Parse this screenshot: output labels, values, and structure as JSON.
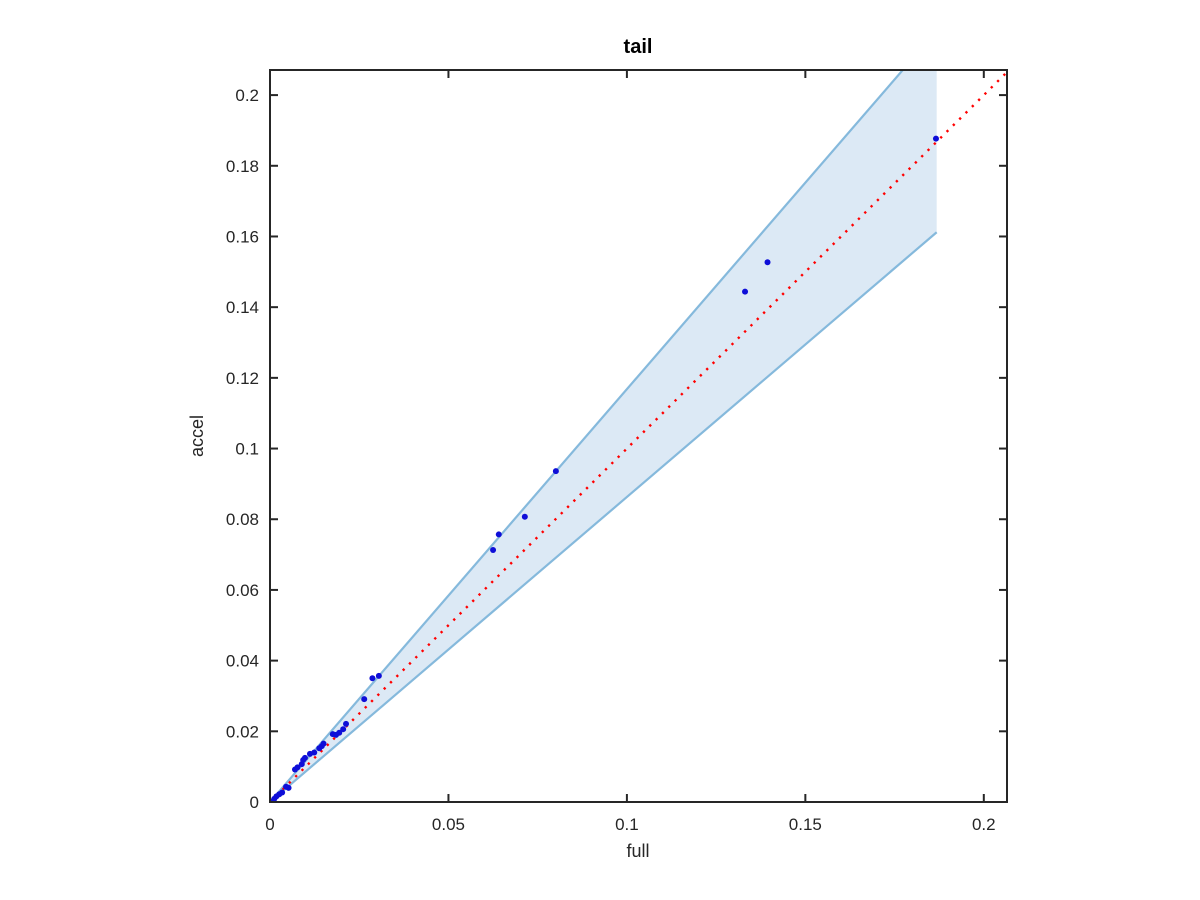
{
  "figure": {
    "background_color": "#ffffff",
    "axes_color": "#262626"
  },
  "chart_data": {
    "type": "scatter",
    "title": "tail",
    "xlabel": "full",
    "ylabel": "accel",
    "xlim": [
      0,
      0.2065
    ],
    "ylim": [
      0,
      0.2071
    ],
    "grid": false,
    "box": true,
    "tick_direction": "in",
    "xticks": [
      0,
      0.05,
      0.1,
      0.15,
      0.2
    ],
    "xtick_labels": [
      "0",
      "0.05",
      "0.1",
      "0.15",
      "0.2"
    ],
    "yticks": [
      0,
      0.02,
      0.04,
      0.06,
      0.08,
      0.1,
      0.12,
      0.14,
      0.16,
      0.18,
      0.2
    ],
    "ytick_labels": [
      "0",
      "0.02",
      "0.04",
      "0.06",
      "0.08",
      "0.1",
      "0.12",
      "0.14",
      "0.16",
      "0.18",
      "0.2"
    ],
    "scatter": {
      "name": "data-points",
      "color": "#0e0ed8",
      "marker": "dot",
      "points": [
        [
          0.0004,
          0.0001
        ],
        [
          0.0012,
          0.0009
        ],
        [
          0.0018,
          0.0016
        ],
        [
          0.0026,
          0.0022
        ],
        [
          0.0034,
          0.0027
        ],
        [
          0.0045,
          0.0043
        ],
        [
          0.0052,
          0.004
        ],
        [
          0.007,
          0.0092
        ],
        [
          0.0077,
          0.0098
        ],
        [
          0.0089,
          0.0107
        ],
        [
          0.0093,
          0.0119
        ],
        [
          0.0098,
          0.0125
        ],
        [
          0.0112,
          0.0136
        ],
        [
          0.0124,
          0.014
        ],
        [
          0.0138,
          0.0152
        ],
        [
          0.0145,
          0.0158
        ],
        [
          0.015,
          0.0165
        ],
        [
          0.0176,
          0.0192
        ],
        [
          0.0185,
          0.019
        ],
        [
          0.0194,
          0.0196
        ],
        [
          0.0205,
          0.0206
        ],
        [
          0.0213,
          0.0221
        ],
        [
          0.0264,
          0.0291
        ],
        [
          0.0287,
          0.035
        ],
        [
          0.0305,
          0.0357
        ],
        [
          0.0625,
          0.0713
        ],
        [
          0.0641,
          0.0757
        ],
        [
          0.0714,
          0.0807
        ],
        [
          0.0801,
          0.0936
        ],
        [
          0.1331,
          0.1444
        ],
        [
          0.1394,
          0.1527
        ],
        [
          0.1866,
          0.1877
        ]
      ]
    },
    "identity_line": {
      "name": "identity-line",
      "style": "dotted",
      "color": "#ff0000",
      "from": [
        0,
        0
      ],
      "to": [
        0.207,
        0.207
      ]
    },
    "band": {
      "name": "confidence-band",
      "fill": "#dce9f5",
      "edge_color": "#85b9dc",
      "lower": [
        [
          0,
          0
        ],
        [
          0.1868,
          0.1612
        ]
      ],
      "upper": [
        [
          0,
          0
        ],
        [
          0.1868,
          0.2182
        ]
      ]
    }
  }
}
